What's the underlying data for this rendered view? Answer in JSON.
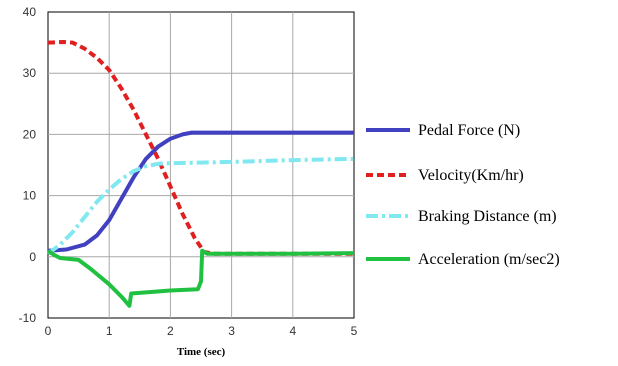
{
  "chart_data": {
    "type": "line",
    "xlabel": "Time (sec)",
    "ylabel": "",
    "xlim": [
      0,
      5
    ],
    "ylim": [
      -10,
      40
    ],
    "xticks": [
      "0",
      "1",
      "2",
      "3",
      "4",
      "5"
    ],
    "yticks": [
      "-10",
      "0",
      "10",
      "20",
      "30",
      "40"
    ],
    "grid": true,
    "legend_position": "right",
    "series": [
      {
        "name": "Pedal Force (N)",
        "color": "#4040c0",
        "dash": "solid",
        "points": [
          [
            0,
            1
          ],
          [
            0.3,
            1.2
          ],
          [
            0.6,
            2
          ],
          [
            0.8,
            3.5
          ],
          [
            1,
            6
          ],
          [
            1.2,
            9.5
          ],
          [
            1.4,
            13
          ],
          [
            1.6,
            16
          ],
          [
            1.8,
            18
          ],
          [
            2,
            19.3
          ],
          [
            2.2,
            20
          ],
          [
            2.35,
            20.3
          ],
          [
            2.5,
            20.3
          ],
          [
            3,
            20.3
          ],
          [
            4,
            20.3
          ],
          [
            5,
            20.3
          ]
        ]
      },
      {
        "name": "Velocity(Km/hr)",
        "color": "#e02020",
        "dash": "dashed",
        "points": [
          [
            0,
            35
          ],
          [
            0.25,
            35.1
          ],
          [
            0.4,
            35
          ],
          [
            0.6,
            34
          ],
          [
            0.8,
            32.5
          ],
          [
            1,
            30.5
          ],
          [
            1.2,
            27.5
          ],
          [
            1.4,
            24
          ],
          [
            1.6,
            20
          ],
          [
            1.8,
            16
          ],
          [
            2,
            11.5
          ],
          [
            2.2,
            7
          ],
          [
            2.4,
            3
          ],
          [
            2.55,
            0.8
          ],
          [
            2.7,
            0.5
          ],
          [
            3,
            0.5
          ],
          [
            4,
            0.5
          ],
          [
            5,
            0.5
          ]
        ]
      },
      {
        "name": "Braking Distance (m)",
        "color": "#80e8f0",
        "dash": "dashdot",
        "points": [
          [
            0,
            0.5
          ],
          [
            0.2,
            2
          ],
          [
            0.4,
            4
          ],
          [
            0.6,
            6.5
          ],
          [
            0.8,
            9
          ],
          [
            1,
            11
          ],
          [
            1.2,
            12.7
          ],
          [
            1.4,
            14
          ],
          [
            1.6,
            14.8
          ],
          [
            1.8,
            15.2
          ],
          [
            2,
            15.3
          ],
          [
            2.5,
            15.4
          ],
          [
            3,
            15.5
          ],
          [
            4,
            15.8
          ],
          [
            5,
            16
          ]
        ]
      },
      {
        "name": "Acceleration (m/sec2)",
        "color": "#20c040",
        "dash": "solid",
        "points": [
          [
            0,
            1
          ],
          [
            0.1,
            0.3
          ],
          [
            0.2,
            -0.2
          ],
          [
            0.5,
            -0.5
          ],
          [
            0.7,
            -2
          ],
          [
            1,
            -4.5
          ],
          [
            1.2,
            -6.5
          ],
          [
            1.33,
            -8
          ],
          [
            1.36,
            -6
          ],
          [
            2,
            -5.5
          ],
          [
            2.45,
            -5.3
          ],
          [
            2.5,
            -4
          ],
          [
            2.52,
            1
          ],
          [
            2.6,
            0.5
          ],
          [
            3,
            0.5
          ],
          [
            4,
            0.5
          ],
          [
            5,
            0.6
          ]
        ]
      }
    ]
  }
}
